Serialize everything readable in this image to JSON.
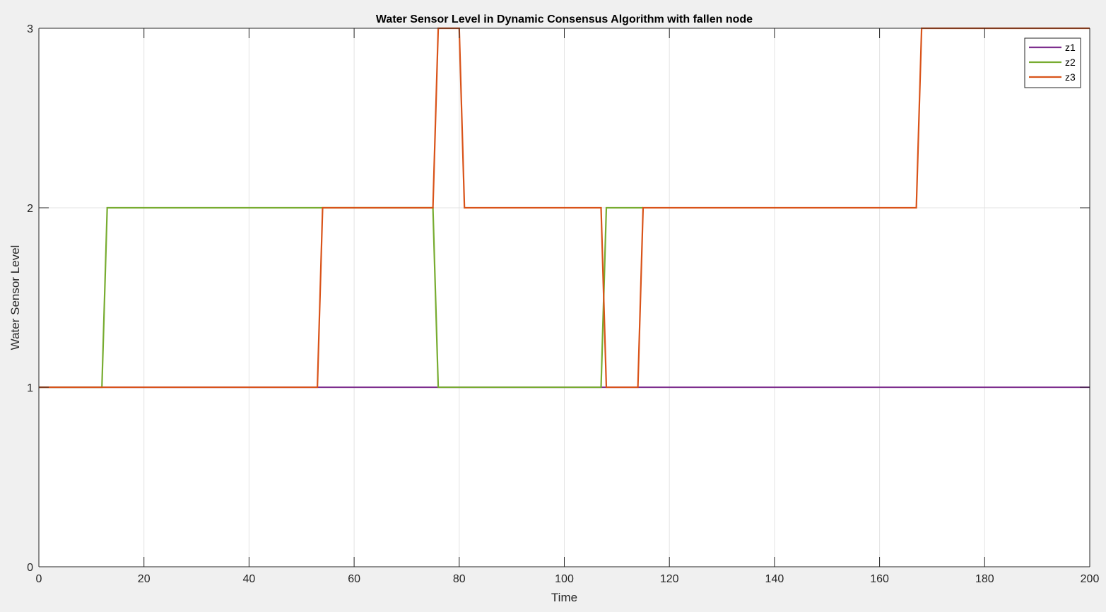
{
  "chart_data": {
    "type": "line",
    "title": "Water Sensor Level in Dynamic Consensus Algorithm with fallen node",
    "xlabel": "Time",
    "ylabel": "Water Sensor Level",
    "xlim": [
      0,
      200
    ],
    "ylim": [
      0,
      3
    ],
    "xticks": [
      0,
      20,
      40,
      60,
      80,
      100,
      120,
      140,
      160,
      180,
      200
    ],
    "yticks": [
      0,
      1,
      2,
      3
    ],
    "grid": true,
    "legend_position": "top-right",
    "colors": {
      "figure_background": "#f0f0f0",
      "axes_background": "#ffffff",
      "grid": "#e3e3e3",
      "axis": "#262626"
    },
    "series": [
      {
        "name": "z1",
        "color": "#7e2f8e",
        "points": [
          [
            0,
            1
          ],
          [
            200,
            1
          ]
        ]
      },
      {
        "name": "z2",
        "color": "#77ac30",
        "points": [
          [
            0,
            1
          ],
          [
            12,
            1
          ],
          [
            13,
            2
          ],
          [
            75,
            2
          ],
          [
            76,
            1
          ],
          [
            107,
            1
          ],
          [
            108,
            2
          ],
          [
            115,
            2
          ]
        ]
      },
      {
        "name": "z3",
        "color": "#d95319",
        "points": [
          [
            0,
            1
          ],
          [
            53,
            1
          ],
          [
            54,
            2
          ],
          [
            75,
            2
          ],
          [
            76,
            3
          ],
          [
            80,
            3
          ],
          [
            81,
            2
          ],
          [
            107,
            2
          ],
          [
            108,
            1
          ],
          [
            114,
            1
          ],
          [
            115,
            2
          ],
          [
            167,
            2
          ],
          [
            168,
            3
          ],
          [
            200,
            3
          ]
        ]
      }
    ]
  }
}
